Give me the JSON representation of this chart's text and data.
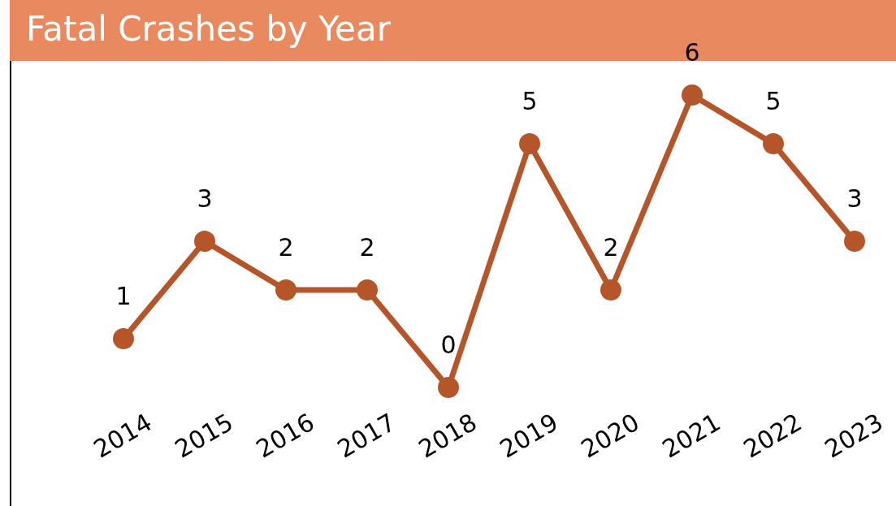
{
  "chart_data": {
    "type": "line",
    "title": "Fatal Crashes by Year",
    "categories": [
      "2014",
      "2015",
      "2016",
      "2017",
      "2018",
      "2019",
      "2020",
      "2021",
      "2022",
      "2023"
    ],
    "series": [
      {
        "color": "#b5562a",
        "values": [
          1,
          3,
          2,
          2,
          0,
          5,
          2,
          6,
          5,
          3
        ]
      }
    ],
    "data_labels": true,
    "marker": "circle",
    "line_style": "solid"
  }
}
